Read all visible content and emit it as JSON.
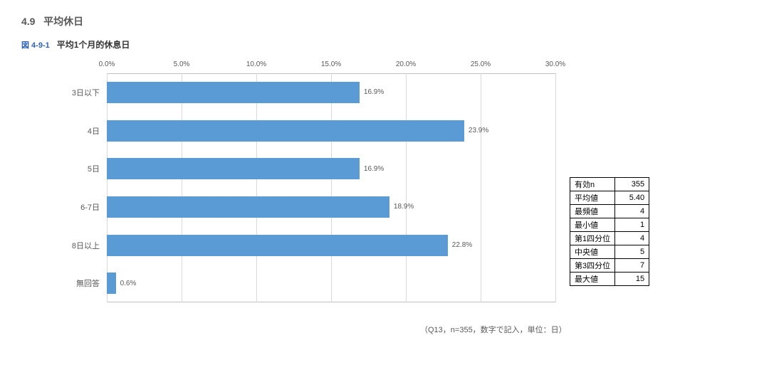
{
  "section": {
    "number": "4.9",
    "title": "平均休日"
  },
  "figure": {
    "number": "図 4-9-1",
    "title": "平均1个月的休息日"
  },
  "chart": {
    "type": "bar-horizontal",
    "xmin": 0.0,
    "xmax": 30.0,
    "xtick_step": 5.0,
    "xtick_labels": [
      "0.0%",
      "5.0%",
      "10.0%",
      "15.0%",
      "20.0%",
      "25.0%",
      "30.0%"
    ],
    "bar_color": "#5b9bd5",
    "grid_color": "#d9d9d9",
    "text_color": "#595959",
    "label_fontsize": 11,
    "value_fontsize": 10,
    "categories": [
      "3日以下",
      "4日",
      "5日",
      "6-7日",
      "8日以上",
      "無回答"
    ],
    "values": [
      16.9,
      23.9,
      16.9,
      18.9,
      22.8,
      0.6
    ],
    "value_labels": [
      "16.9%",
      "23.9%",
      "16.9%",
      "18.9%",
      "22.8%",
      "0.6%"
    ]
  },
  "stats": {
    "rows": [
      {
        "label": "有効n",
        "value": "355"
      },
      {
        "label": "平均値",
        "value": "5.40"
      },
      {
        "label": "最頻値",
        "value": "4"
      },
      {
        "label": "最小値",
        "value": "1"
      },
      {
        "label": "第1四分位",
        "value": "4"
      },
      {
        "label": "中央値",
        "value": "5"
      },
      {
        "label": "第3四分位",
        "value": "7"
      },
      {
        "label": "最大値",
        "value": "15"
      }
    ]
  },
  "footnote": "（Q13，n=355，数字で記入，単位：日）"
}
